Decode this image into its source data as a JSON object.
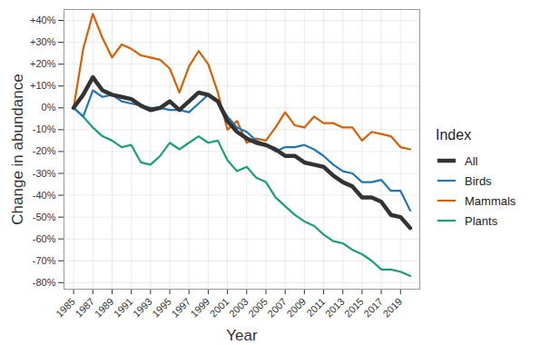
{
  "chart_data": {
    "type": "line",
    "x_label": "Year",
    "y_label": "Change in abundance",
    "legend_title": "Index",
    "legend": "right",
    "grid": true,
    "x": [
      1985,
      1986,
      1987,
      1988,
      1989,
      1990,
      1991,
      1992,
      1993,
      1994,
      1995,
      1996,
      1997,
      1998,
      1999,
      2000,
      2001,
      2002,
      2003,
      2004,
      2005,
      2006,
      2007,
      2008,
      2009,
      2010,
      2011,
      2012,
      2013,
      2014,
      2015,
      2016,
      2017,
      2018,
      2019,
      2020
    ],
    "xlim": [
      1984,
      2021
    ],
    "xticks": [
      1985,
      1987,
      1989,
      1991,
      1993,
      1995,
      1997,
      1999,
      2001,
      2003,
      2005,
      2007,
      2009,
      2011,
      2013,
      2015,
      2017,
      2019
    ],
    "ylim": [
      -83,
      45
    ],
    "yticks": [
      {
        "value": -80,
        "label": "-80%"
      },
      {
        "value": -70,
        "label": "-70%"
      },
      {
        "value": -60,
        "label": "-60%"
      },
      {
        "value": -50,
        "label": "-50%"
      },
      {
        "value": -40,
        "label": "-40%"
      },
      {
        "value": -30,
        "label": "-30%"
      },
      {
        "value": -20,
        "label": "-20%"
      },
      {
        "value": -10,
        "label": "-10%"
      },
      {
        "value": 0,
        "label": "0%"
      },
      {
        "value": 10,
        "label": "+10%"
      },
      {
        "value": 20,
        "label": "+20%"
      },
      {
        "value": 30,
        "label": "+30%"
      },
      {
        "value": 40,
        "label": "+40%"
      }
    ],
    "series": [
      {
        "name": "All",
        "color": "#333333",
        "values": [
          0,
          6,
          14,
          8,
          6,
          5,
          4,
          1,
          -1,
          0,
          3,
          -1,
          3,
          7,
          6,
          3,
          -6,
          -11,
          -14,
          -16,
          -17,
          -19,
          -22,
          -22,
          -25,
          -26,
          -27,
          -31,
          -34,
          -36,
          -41,
          -41,
          -43,
          -49,
          -50,
          -55
        ]
      },
      {
        "name": "Birds",
        "color": "#1f78b4",
        "values": [
          0,
          -4,
          8,
          5,
          6,
          3,
          2,
          1,
          0,
          0,
          -1,
          -1,
          -2,
          2,
          6,
          3,
          -4,
          -9,
          -11,
          -15,
          -17,
          -20,
          -18,
          -18,
          -17,
          -19,
          -22,
          -26,
          -29,
          -30,
          -34,
          -34,
          -33,
          -38,
          -38,
          -47
        ]
      },
      {
        "name": "Mammals",
        "color": "#d95f02",
        "values": [
          0,
          27,
          43,
          32,
          23,
          29,
          27,
          24,
          23,
          22,
          18,
          7,
          19,
          26,
          20,
          7,
          -10,
          -6,
          -16,
          -14,
          -15,
          -9,
          -2,
          -8,
          -9,
          -4,
          -7,
          -7,
          -9,
          -9,
          -15,
          -11,
          -12,
          -13,
          -18,
          -19
        ]
      },
      {
        "name": "Plants",
        "color": "#1b9e77",
        "values": [
          0,
          -4,
          -9,
          -13,
          -15,
          -18,
          -17,
          -25,
          -26,
          -22,
          -16,
          -19,
          -16,
          -13,
          -16,
          -15,
          -24,
          -29,
          -27,
          -32,
          -34,
          -41,
          -45,
          -49,
          -52,
          -54,
          -58,
          -61,
          -62,
          -65,
          -67,
          -70,
          -74,
          -74,
          -75,
          -77
        ]
      }
    ]
  }
}
